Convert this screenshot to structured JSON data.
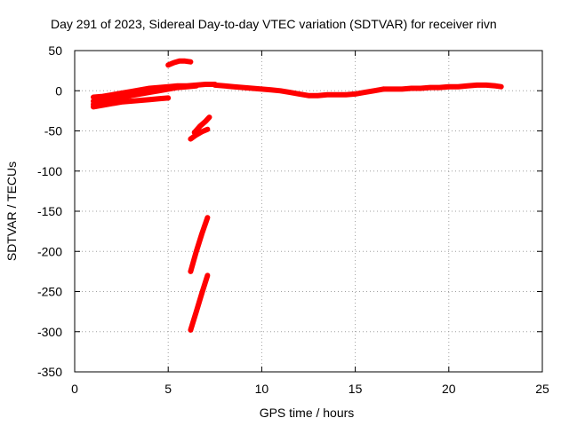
{
  "chart_data": {
    "type": "line",
    "title": "Day 291 of 2023, Sidereal Day-to-day VTEC variation (SDTVAR) for receiver rivn",
    "xlabel": "GPS time / hours",
    "ylabel": "SDTVAR / TECUs",
    "xlim": [
      0,
      25
    ],
    "ylim": [
      -350,
      50
    ],
    "xticks": [
      0,
      5,
      10,
      15,
      20,
      25
    ],
    "yticks": [
      50,
      0,
      -50,
      -100,
      -150,
      -200,
      -250,
      -300,
      -350
    ],
    "grid": true,
    "color": "#ff0000",
    "series": [
      {
        "x": [
          1.0,
          1.5,
          2.0,
          2.5,
          3.0,
          3.5,
          4.0,
          4.5,
          5.0,
          5.5,
          6.0,
          6.5,
          7.0,
          7.5
        ],
        "y": [
          -8,
          -7,
          -5,
          -3,
          -1,
          1,
          3,
          4,
          5,
          6,
          6,
          7,
          8,
          8
        ]
      },
      {
        "x": [
          1.0,
          1.5,
          2.0,
          2.5,
          3.0,
          3.5,
          4.0,
          4.5,
          5.0,
          5.5,
          6.0,
          6.5
        ],
        "y": [
          -13,
          -12,
          -10,
          -8,
          -6,
          -4,
          -2,
          0,
          2,
          4,
          5,
          6
        ]
      },
      {
        "x": [
          1.0,
          1.5,
          2.0,
          2.5,
          3.0,
          3.5,
          4.0,
          4.5,
          5.0
        ],
        "y": [
          -20,
          -18,
          -16,
          -14,
          -13,
          -12,
          -11,
          -10,
          -9
        ]
      },
      {
        "x": [
          1.0,
          1.5,
          2.0,
          2.5,
          3.0
        ],
        "y": [
          -17,
          -15,
          -12,
          -9,
          -6
        ]
      },
      {
        "x": [
          5.0,
          5.3,
          5.6,
          5.9,
          6.2
        ],
        "y": [
          32,
          35,
          37,
          37,
          36
        ]
      },
      {
        "x": [
          7.5,
          8.0,
          8.5,
          9.0,
          9.5,
          10.0,
          10.5,
          11.0,
          11.5,
          12.0,
          12.5,
          13.0,
          13.5,
          14.0,
          14.5,
          15.0,
          15.5,
          16.0,
          16.5
        ],
        "y": [
          7,
          6,
          5,
          4,
          3,
          2,
          1,
          0,
          -2,
          -4,
          -6,
          -6,
          -5,
          -5,
          -5,
          -4,
          -2,
          0,
          2
        ]
      },
      {
        "x": [
          16.5,
          17.0,
          17.5,
          18.0,
          18.5,
          19.0,
          19.5,
          20.0,
          20.5,
          21.0,
          21.5,
          22.0,
          22.5,
          22.8
        ],
        "y": [
          2,
          2,
          2,
          3,
          3,
          4,
          4,
          5,
          5,
          6,
          7,
          7,
          6,
          5
        ]
      },
      {
        "x": [
          6.2,
          6.5,
          6.8,
          7.1
        ],
        "y": [
          -60,
          -55,
          -51,
          -48
        ]
      },
      {
        "x": [
          6.4,
          6.7,
          7.0,
          7.2
        ],
        "y": [
          -52,
          -44,
          -38,
          -33
        ]
      },
      {
        "x": [
          6.2,
          6.5,
          6.8,
          7.1
        ],
        "y": [
          -225,
          -200,
          -178,
          -158
        ]
      },
      {
        "x": [
          6.2,
          6.5,
          6.8,
          7.1
        ],
        "y": [
          -298,
          -275,
          -252,
          -230
        ]
      }
    ]
  }
}
